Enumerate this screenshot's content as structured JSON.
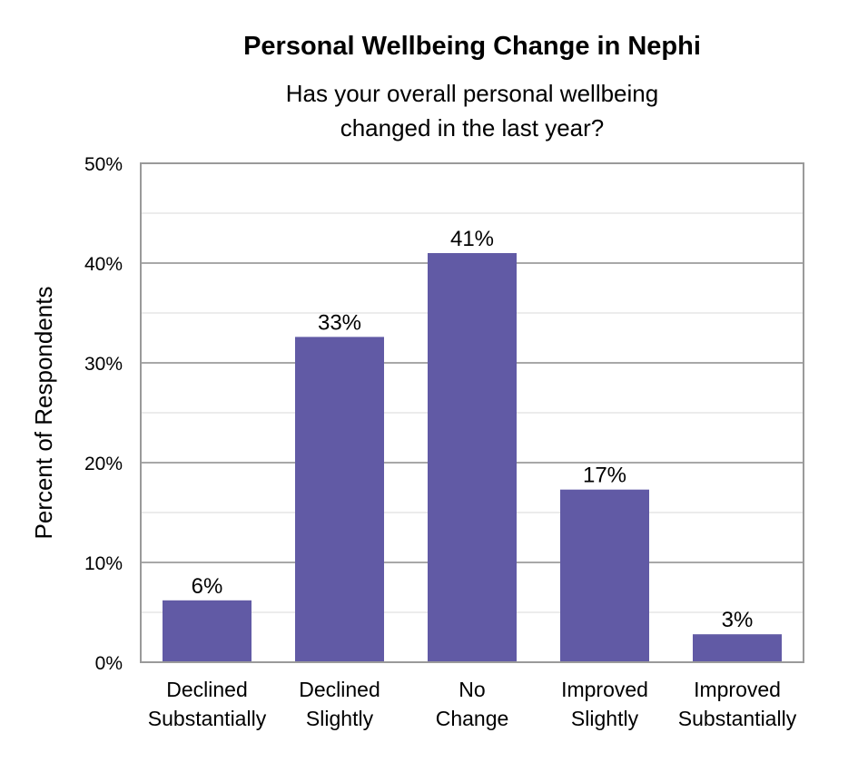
{
  "chart_data": {
    "type": "bar",
    "title": "Personal Wellbeing Change in Nephi",
    "subtitle_lines": [
      "Has your overall personal wellbeing",
      "changed in the last year?"
    ],
    "ylabel": "Percent of Respondents",
    "xlabel": "",
    "categories": [
      [
        "Declined",
        "Substantially"
      ],
      [
        "Declined",
        "Slightly"
      ],
      [
        "No",
        "Change"
      ],
      [
        "Improved",
        "Slightly"
      ],
      [
        "Improved",
        "Substantially"
      ]
    ],
    "values": [
      6.2,
      32.6,
      41.0,
      17.3,
      2.8
    ],
    "data_labels": [
      "6%",
      "33%",
      "41%",
      "17%",
      "3%"
    ],
    "ylim": [
      0,
      50
    ],
    "y_ticks": [
      0,
      10,
      20,
      30,
      40,
      50
    ],
    "y_tick_labels": [
      "0%",
      "10%",
      "20%",
      "30%",
      "40%",
      "50%"
    ],
    "grid": true,
    "bar_color": "#615AA5",
    "grid_color": "#B5B5B5",
    "frame_color": "#9A9A9A"
  }
}
